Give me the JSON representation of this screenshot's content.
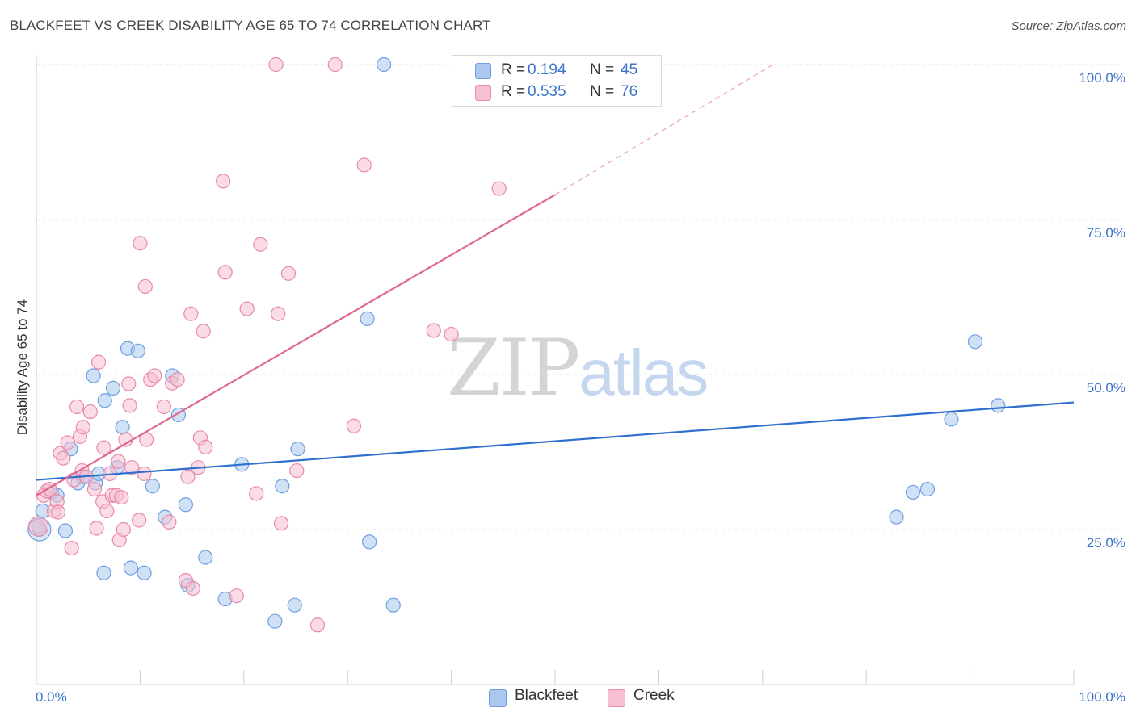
{
  "title": "BLACKFEET VS CREEK DISABILITY AGE 65 TO 74 CORRELATION CHART",
  "source": "Source: ZipAtlas.com",
  "watermark": {
    "zip": "ZIP",
    "atlas": "atlas"
  },
  "legend": {
    "rows": [
      {
        "r_label": "R =",
        "r_value": "0.194",
        "n_label": "N =",
        "n_value": "45",
        "color": "#aac8ef",
        "border": "#6d9fe0"
      },
      {
        "r_label": "R =",
        "r_value": "0.535",
        "n_label": "N =",
        "n_value": "76",
        "color": "#f7c0d2",
        "border": "#e88aaa"
      }
    ],
    "bottom": [
      "Blackfeet",
      "Creek"
    ]
  },
  "chart_data": {
    "type": "scatter",
    "title": "BLACKFEET VS CREEK DISABILITY AGE 65 TO 74 CORRELATION CHART",
    "xlabel": "",
    "ylabel": "Disability Age 65 to 74",
    "xlim": [
      0,
      100
    ],
    "ylim": [
      0,
      100
    ],
    "x_ticks": [
      "0.0%",
      "100.0%"
    ],
    "y_ticks": [
      "25.0%",
      "50.0%",
      "75.0%",
      "100.0%"
    ],
    "grid": true,
    "series": [
      {
        "name": "Blackfeet",
        "color": "#6d9fe0",
        "fill": "#aac8ef",
        "trend": {
          "x": [
            0,
            100
          ],
          "y": [
            33,
            45.5
          ]
        },
        "points": [
          [
            0.3,
            25
          ],
          [
            0.6,
            28
          ],
          [
            1.5,
            31
          ],
          [
            2,
            30.5
          ],
          [
            2.8,
            24.8
          ],
          [
            3.3,
            38
          ],
          [
            4,
            32.5
          ],
          [
            4.5,
            33.5
          ],
          [
            5.5,
            49.8
          ],
          [
            5.7,
            32.5
          ],
          [
            6,
            34
          ],
          [
            6.5,
            18
          ],
          [
            6.6,
            45.8
          ],
          [
            7.4,
            47.8
          ],
          [
            7.8,
            35
          ],
          [
            8.3,
            41.5
          ],
          [
            8.8,
            54.2
          ],
          [
            9.1,
            18.8
          ],
          [
            9.8,
            53.8
          ],
          [
            10.4,
            18
          ],
          [
            11.2,
            32
          ],
          [
            12.4,
            27
          ],
          [
            13.1,
            49.8
          ],
          [
            13.7,
            43.5
          ],
          [
            14.4,
            29
          ],
          [
            14.6,
            16
          ],
          [
            16.3,
            20.5
          ],
          [
            18.2,
            13.8
          ],
          [
            19.8,
            35.5
          ],
          [
            23,
            10.2
          ],
          [
            23.7,
            32
          ],
          [
            24.9,
            12.8
          ],
          [
            25.2,
            38
          ],
          [
            31.9,
            59
          ],
          [
            32.1,
            23
          ],
          [
            33.5,
            100
          ],
          [
            34.4,
            12.8
          ],
          [
            82.9,
            27
          ],
          [
            84.5,
            31
          ],
          [
            85.9,
            31.5
          ],
          [
            88.2,
            42.8
          ],
          [
            90.5,
            55.3
          ],
          [
            92.7,
            45
          ]
        ]
      },
      {
        "name": "Creek",
        "color": "#e88aaa",
        "fill": "#f7c0d2",
        "trend": {
          "x": [
            0,
            50
          ],
          "y": [
            30.5,
            79
          ]
        },
        "trend_dashed": {
          "x": [
            50,
            71
          ],
          "y": [
            79,
            100
          ]
        },
        "points": [
          [
            0.2,
            25.5
          ],
          [
            0.7,
            30.5
          ],
          [
            1.0,
            31.2
          ],
          [
            1.3,
            31.5
          ],
          [
            1.7,
            28
          ],
          [
            2.0,
            29.5
          ],
          [
            2.1,
            27.8
          ],
          [
            2.3,
            37.3
          ],
          [
            2.6,
            36.5
          ],
          [
            3.0,
            39
          ],
          [
            3.4,
            22
          ],
          [
            3.6,
            33
          ],
          [
            3.9,
            44.8
          ],
          [
            4.2,
            40
          ],
          [
            4.4,
            34.5
          ],
          [
            4.5,
            41.5
          ],
          [
            4.8,
            33.5
          ],
          [
            5.2,
            44
          ],
          [
            5.6,
            31.5
          ],
          [
            5.8,
            25.2
          ],
          [
            6.0,
            52
          ],
          [
            6.4,
            29.5
          ],
          [
            6.5,
            38.2
          ],
          [
            6.8,
            28
          ],
          [
            7.1,
            34
          ],
          [
            7.3,
            30.5
          ],
          [
            7.7,
            30.5
          ],
          [
            7.9,
            36
          ],
          [
            8.0,
            23.3
          ],
          [
            8.2,
            30.2
          ],
          [
            8.4,
            25
          ],
          [
            8.6,
            39.5
          ],
          [
            8.9,
            48.5
          ],
          [
            9.0,
            45
          ],
          [
            9.2,
            35
          ],
          [
            9.9,
            26.5
          ],
          [
            10.0,
            71.2
          ],
          [
            10.4,
            34
          ],
          [
            10.5,
            64.2
          ],
          [
            10.6,
            39.5
          ],
          [
            11.0,
            49.2
          ],
          [
            11.4,
            49.8
          ],
          [
            12.3,
            44.8
          ],
          [
            12.8,
            26.2
          ],
          [
            13.1,
            48.6
          ],
          [
            13.6,
            49.2
          ],
          [
            14.4,
            16.8
          ],
          [
            14.6,
            33.5
          ],
          [
            14.9,
            59.8
          ],
          [
            15.1,
            15.5
          ],
          [
            15.6,
            35
          ],
          [
            15.8,
            39.8
          ],
          [
            16.1,
            57
          ],
          [
            16.3,
            38.3
          ],
          [
            18.0,
            81.2
          ],
          [
            18.2,
            66.5
          ],
          [
            19.3,
            14.3
          ],
          [
            20.3,
            60.6
          ],
          [
            21.2,
            30.8
          ],
          [
            21.6,
            71
          ],
          [
            23.1,
            100
          ],
          [
            23.3,
            59.8
          ],
          [
            23.6,
            26
          ],
          [
            24.3,
            66.3
          ],
          [
            25.1,
            34.5
          ],
          [
            27.1,
            9.6
          ],
          [
            28.8,
            100
          ],
          [
            30.6,
            41.7
          ],
          [
            31.6,
            83.8
          ],
          [
            38.3,
            57.1
          ],
          [
            40.0,
            56.5
          ],
          [
            44.6,
            80
          ]
        ]
      }
    ]
  }
}
